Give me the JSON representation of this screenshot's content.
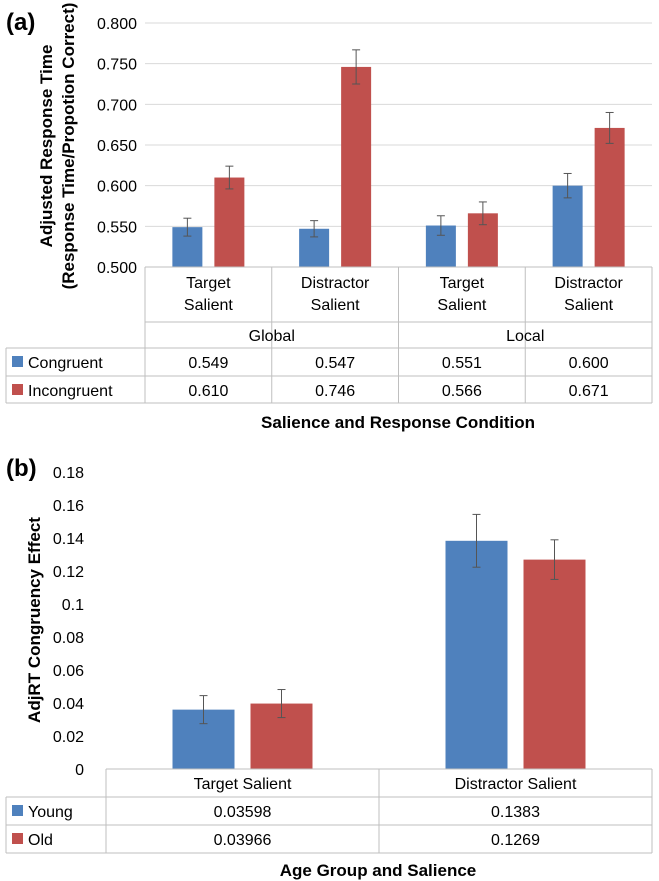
{
  "colors": {
    "congruent": "#4f81bd",
    "incongruent": "#c0504d",
    "grid": "#d9d9d9",
    "axis": "#bfbfbf"
  },
  "chart_data": [
    {
      "type": "bar",
      "panel_label": "(a)",
      "ylabel_line1": "Adjusted Response Time",
      "ylabel_line2": "(Response Time/Propotion Correct)",
      "xlabel": "Salience and Response Condition",
      "ylim": [
        0.5,
        0.8
      ],
      "yticks": [
        "0.500",
        "0.550",
        "0.600",
        "0.650",
        "0.700",
        "0.750",
        "0.800"
      ],
      "categories": [
        "Target Salient",
        "Distractor Salient",
        "Target Salient",
        "Distractor Salient"
      ],
      "category_lines": [
        [
          "Target",
          "Salient"
        ],
        [
          "Distractor",
          "Salient"
        ],
        [
          "Target",
          "Salient"
        ],
        [
          "Distractor",
          "Salient"
        ]
      ],
      "groups": [
        "Global",
        "Local"
      ],
      "series": [
        {
          "name": "Congruent",
          "color": "#4f81bd",
          "values": [
            0.549,
            0.547,
            0.551,
            0.6
          ],
          "labels": [
            "0.549",
            "0.547",
            "0.551",
            "0.600"
          ],
          "errors": [
            0.011,
            0.01,
            0.012,
            0.015
          ]
        },
        {
          "name": "Incongruent",
          "color": "#c0504d",
          "values": [
            0.61,
            0.746,
            0.566,
            0.671
          ],
          "labels": [
            "0.610",
            "0.746",
            "0.566",
            "0.671"
          ],
          "errors": [
            0.014,
            0.021,
            0.014,
            0.019
          ]
        }
      ],
      "grid": true
    },
    {
      "type": "bar",
      "panel_label": "(b)",
      "ylabel": "AdjRT Congruency Effect",
      "xlabel": "Age Group and Salience",
      "ylim": [
        0,
        0.18
      ],
      "yticks": [
        "0",
        "0.02",
        "0.04",
        "0.06",
        "0.08",
        "0.1",
        "0.12",
        "0.14",
        "0.16",
        "0.18"
      ],
      "categories": [
        "Target Salient",
        "Distractor Salient"
      ],
      "series": [
        {
          "name": "Young",
          "color": "#4f81bd",
          "values": [
            0.03598,
            0.1383
          ],
          "labels": [
            "0.03598",
            "0.1383"
          ],
          "errors": [
            0.0085,
            0.016
          ]
        },
        {
          "name": "Old",
          "color": "#c0504d",
          "values": [
            0.03966,
            0.1269
          ],
          "labels": [
            "0.03966",
            "0.1269"
          ],
          "errors": [
            0.0085,
            0.012
          ]
        }
      ],
      "grid": false
    }
  ]
}
